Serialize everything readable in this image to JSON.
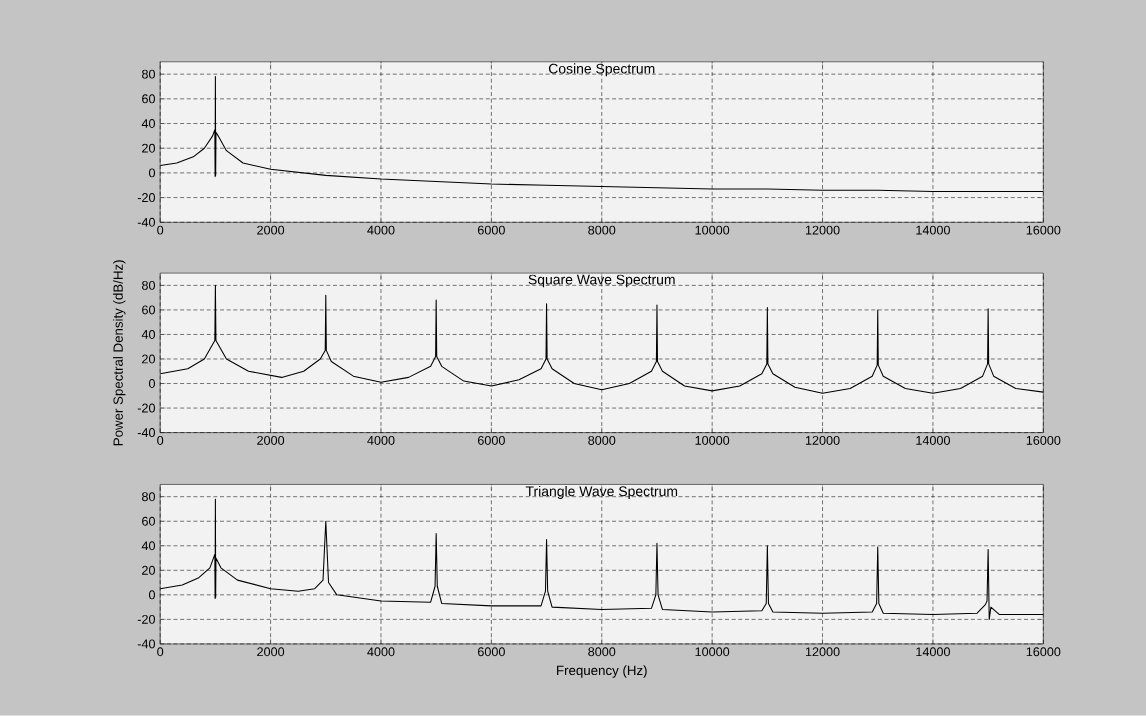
{
  "chart_data": [
    {
      "type": "line",
      "title": "Cosine Spectrum",
      "xlim": [
        0,
        16000
      ],
      "ylim": [
        -40,
        90
      ],
      "xticks": [
        0,
        2000,
        4000,
        6000,
        8000,
        10000,
        12000,
        14000,
        16000
      ],
      "yticks": [
        -40,
        -20,
        0,
        20,
        40,
        60,
        80
      ],
      "grid": true,
      "series": [
        {
          "color": "#000000",
          "x": [
            0,
            300,
            600,
            800,
            950,
            990,
            995,
            1000,
            1005,
            1010,
            1050,
            1200,
            1500,
            2000,
            3000,
            4000,
            5000,
            6000,
            7000,
            8000,
            9000,
            10000,
            11000,
            12000,
            13000,
            14000,
            15000,
            16000
          ],
          "values": [
            6,
            8,
            13,
            20,
            30,
            35,
            -3,
            78,
            -2,
            33,
            30,
            18,
            8,
            3,
            -2,
            -5,
            -7,
            -9,
            -10,
            -11,
            -12,
            -13,
            -13,
            -14,
            -14,
            -15,
            -15,
            -15
          ]
        }
      ]
    },
    {
      "type": "line",
      "title": "Square Wave Spectrum",
      "ylabel": "Power Spectral Density (dB/Hz)",
      "xlim": [
        0,
        16000
      ],
      "ylim": [
        -40,
        90
      ],
      "xticks": [
        0,
        2000,
        4000,
        6000,
        8000,
        10000,
        12000,
        14000,
        16000
      ],
      "yticks": [
        -40,
        -20,
        0,
        20,
        40,
        60,
        80
      ],
      "grid": true,
      "series": [
        {
          "color": "#000000",
          "x": [
            0,
            500,
            800,
            990,
            1000,
            1010,
            1200,
            1600,
            2200,
            2600,
            2900,
            2990,
            3000,
            3010,
            3100,
            3500,
            4000,
            4500,
            4900,
            4990,
            5000,
            5010,
            5100,
            5500,
            6000,
            6500,
            6900,
            6990,
            7000,
            7010,
            7100,
            7500,
            8000,
            8500,
            8900,
            8990,
            9000,
            9010,
            9100,
            9500,
            10000,
            10500,
            10900,
            10990,
            11000,
            11010,
            11100,
            11500,
            12000,
            12500,
            12900,
            12990,
            13000,
            13010,
            13100,
            13500,
            14000,
            14500,
            14900,
            14990,
            15000,
            15010,
            15100,
            15500,
            16000
          ],
          "values": [
            8,
            12,
            20,
            35,
            80,
            35,
            20,
            10,
            5,
            10,
            20,
            27,
            72,
            27,
            18,
            6,
            1,
            5,
            14,
            22,
            68,
            22,
            14,
            2,
            -2,
            3,
            12,
            20,
            65,
            20,
            12,
            0,
            -5,
            0,
            10,
            18,
            64,
            18,
            10,
            -2,
            -6,
            -2,
            8,
            16,
            62,
            16,
            8,
            -3,
            -8,
            -4,
            6,
            15,
            60,
            15,
            6,
            -4,
            -8,
            -4,
            6,
            16,
            61,
            16,
            6,
            -4,
            -7
          ]
        }
      ]
    },
    {
      "type": "line",
      "title": "Triangle Wave Spectrum",
      "xlabel": "Frequency (Hz)",
      "xlim": [
        0,
        16000
      ],
      "ylim": [
        -40,
        90
      ],
      "xticks": [
        0,
        2000,
        4000,
        6000,
        8000,
        10000,
        12000,
        14000,
        16000
      ],
      "yticks": [
        -40,
        -20,
        0,
        20,
        40,
        60,
        80
      ],
      "grid": true,
      "series": [
        {
          "color": "#000000",
          "x": [
            0,
            400,
            700,
            900,
            990,
            995,
            1000,
            1005,
            1010,
            1100,
            1400,
            2000,
            2500,
            2800,
            2950,
            3000,
            3050,
            3200,
            4000,
            4900,
            4980,
            5000,
            5020,
            5100,
            6000,
            6900,
            6980,
            7000,
            7020,
            7100,
            8000,
            8900,
            8980,
            9000,
            9020,
            9100,
            10000,
            10900,
            10980,
            11000,
            11020,
            11100,
            12000,
            12900,
            12980,
            13000,
            13020,
            13100,
            14000,
            14800,
            14950,
            14980,
            15000,
            15020,
            15050,
            15200,
            16000
          ],
          "values": [
            5,
            8,
            14,
            22,
            33,
            -3,
            78,
            -2,
            30,
            22,
            12,
            5,
            3,
            5,
            12,
            60,
            10,
            0,
            -5,
            -6,
            7,
            50,
            7,
            -7,
            -9,
            -9,
            3,
            45,
            3,
            -10,
            -12,
            -11,
            0,
            42,
            0,
            -12,
            -14,
            -13,
            -7,
            40,
            -7,
            -14,
            -15,
            -14,
            -7,
            39,
            -7,
            -15,
            -16,
            -15,
            -8,
            -5,
            37,
            -20,
            -10,
            -16,
            -16
          ]
        }
      ]
    }
  ]
}
